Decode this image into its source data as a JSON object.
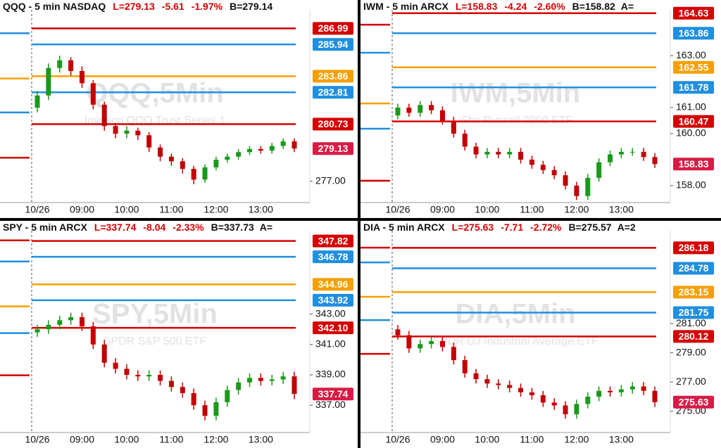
{
  "chart_data": [
    {
      "type": "candlestick",
      "title": "QQQ - 5 min  NASDAQ",
      "quote": [
        "L=279.13",
        "-5.61",
        "-1.97%"
      ],
      "bid": "B=279.14",
      "watermark": "QQQ,5Min",
      "subtitle": "Invesco QQQ Trust Series 1",
      "up_color": "#1a9a1a",
      "down_color": "#c40000",
      "open": [
        281.8,
        282.6,
        284.4,
        284.9,
        284.2,
        283.4,
        282.0,
        280.6,
        280.1,
        280.3,
        280.0,
        279.2,
        278.6,
        278.3,
        277.8,
        277.1,
        277.9,
        278.4,
        278.6,
        278.9,
        279.1,
        279.0,
        279.3,
        279.6
      ],
      "high": [
        282.9,
        284.7,
        285.2,
        285.1,
        284.5,
        283.6,
        282.2,
        280.8,
        280.6,
        280.5,
        280.2,
        279.4,
        278.8,
        278.5,
        278.0,
        278.1,
        278.6,
        278.8,
        279.1,
        279.3,
        279.3,
        279.5,
        279.8,
        279.8
      ],
      "low": [
        281.5,
        282.3,
        284.1,
        283.9,
        283.1,
        281.7,
        280.3,
        279.8,
        279.8,
        279.7,
        278.9,
        278.3,
        278.0,
        277.5,
        276.8,
        276.9,
        277.7,
        278.2,
        278.4,
        278.7,
        278.8,
        278.8,
        279.1,
        278.9
      ],
      "close": [
        282.6,
        284.4,
        284.9,
        284.2,
        283.4,
        282.0,
        280.6,
        280.1,
        280.3,
        280.0,
        279.2,
        278.6,
        278.3,
        277.8,
        277.1,
        277.9,
        278.4,
        278.6,
        278.9,
        279.1,
        279.0,
        279.3,
        279.6,
        279.13
      ],
      "levels": [
        {
          "value": 286.99,
          "label": "286.99",
          "color": "#d40000"
        },
        {
          "value": 285.94,
          "label": "285.94",
          "color": "#1f8fe0"
        },
        {
          "value": 283.86,
          "label": "283.86",
          "color": "#f5a000"
        },
        {
          "value": 282.81,
          "label": "282.81",
          "color": "#1f8fe0"
        },
        {
          "value": 280.73,
          "label": "280.73",
          "color": "#d40000"
        }
      ],
      "prior_levels": [
        {
          "value": 286.67,
          "color": "#1f8fe0"
        },
        {
          "value": 283.71,
          "color": "#f5a000"
        },
        {
          "value": 281.49,
          "color": "#1f8fe0"
        },
        {
          "value": 278.53,
          "color": "#d40000"
        }
      ],
      "last": {
        "value": 279.13,
        "label": "279.13",
        "color": "#d81b45"
      },
      "ylim": [
        275.6,
        288.2
      ],
      "yticks": [
        {
          "value": 277,
          "label": "277.00"
        }
      ],
      "xticks": [
        {
          "value": 0,
          "label": "10/26"
        },
        {
          "value": 4,
          "label": "09:00"
        },
        {
          "value": 8,
          "label": "10:00"
        },
        {
          "value": 12,
          "label": "11:00"
        },
        {
          "value": 16,
          "label": "12:00"
        },
        {
          "value": 20,
          "label": "13:00"
        }
      ]
    },
    {
      "type": "candlestick",
      "title": "IWM - 5 min  ARCX",
      "quote": [
        "L=158.83",
        "-4.24",
        "-2.60%"
      ],
      "bid": "B=158.82",
      "ask": "A=",
      "watermark": "IWM,5Min",
      "subtitle": "iShs Russell 2000 ETF",
      "up_color": "#1a9a1a",
      "down_color": "#c40000",
      "open": [
        160.7,
        161.0,
        160.8,
        161.1,
        160.9,
        160.5,
        160.0,
        159.5,
        159.2,
        159.3,
        159.2,
        159.3,
        159.0,
        158.8,
        158.6,
        158.4,
        158.0,
        157.6,
        158.3,
        158.9,
        159.2,
        159.3,
        159.3,
        159.1
      ],
      "high": [
        161.15,
        161.15,
        161.25,
        161.25,
        161.05,
        160.65,
        160.15,
        159.65,
        159.45,
        159.45,
        159.45,
        159.45,
        159.15,
        158.95,
        158.75,
        158.55,
        158.15,
        158.45,
        159.05,
        159.35,
        159.45,
        159.45,
        159.45,
        159.25
      ],
      "low": [
        160.55,
        160.65,
        160.65,
        160.75,
        160.35,
        159.85,
        159.35,
        159.05,
        159.05,
        159.05,
        159.05,
        158.85,
        158.65,
        158.45,
        158.25,
        157.85,
        157.45,
        157.45,
        158.15,
        158.75,
        159.05,
        159.15,
        158.95,
        158.68
      ],
      "close": [
        161.0,
        160.8,
        161.1,
        160.9,
        160.5,
        160.0,
        159.5,
        159.2,
        159.3,
        159.2,
        159.3,
        159.0,
        158.8,
        158.6,
        158.4,
        158.0,
        157.6,
        158.3,
        158.9,
        159.2,
        159.3,
        159.3,
        159.1,
        158.83
      ],
      "levels": [
        {
          "value": 164.63,
          "label": "164.63",
          "color": "#d40000"
        },
        {
          "value": 163.86,
          "label": "163.86",
          "color": "#1f8fe0"
        },
        {
          "value": 162.55,
          "label": "162.55",
          "color": "#f5a000"
        },
        {
          "value": 161.78,
          "label": "161.78",
          "color": "#1f8fe0"
        },
        {
          "value": 160.47,
          "label": "160.47",
          "color": "#d40000"
        }
      ],
      "prior_levels": [
        {
          "value": 164.19,
          "color": "#d40000"
        },
        {
          "value": 163.11,
          "color": "#1f8fe0"
        },
        {
          "value": 161.16,
          "color": "#f5a000"
        },
        {
          "value": 160.19,
          "color": "#1f8fe0"
        },
        {
          "value": 158.19,
          "color": "#d40000"
        }
      ],
      "last": {
        "value": 158.83,
        "label": "158.83",
        "color": "#d81b45"
      },
      "ylim": [
        157.35,
        164.76
      ],
      "yticks": [
        {
          "value": 163,
          "label": "163.00"
        },
        {
          "value": 161,
          "label": "161.00"
        },
        {
          "value": 160,
          "label": "160.00"
        },
        {
          "value": 158,
          "label": "158.00"
        }
      ],
      "xticks": [
        {
          "value": 0,
          "label": "10/26"
        },
        {
          "value": 4,
          "label": "09:00"
        },
        {
          "value": 8,
          "label": "10:00"
        },
        {
          "value": 12,
          "label": "11:00"
        },
        {
          "value": 16,
          "label": "12:00"
        },
        {
          "value": 20,
          "label": "13:00"
        }
      ]
    },
    {
      "type": "candlestick",
      "title": "SPY - 5 min  ARCX",
      "quote": [
        "L=337.74",
        "-8.04",
        "-2.33%"
      ],
      "bid": "B=337.73",
      "ask": "A=",
      "watermark": "SPY,5Min",
      "subtitle": "SPDR S&P 500 ETF",
      "up_color": "#1a9a1a",
      "down_color": "#c40000",
      "open": [
        341.8,
        342.0,
        342.3,
        342.6,
        342.8,
        342.2,
        341.0,
        339.8,
        339.4,
        339.0,
        338.9,
        339.0,
        338.6,
        338.2,
        337.8,
        337.0,
        336.3,
        337.2,
        338.0,
        338.5,
        338.8,
        338.6,
        338.7,
        338.9
      ],
      "high": [
        342.3,
        342.6,
        342.9,
        343.1,
        343.1,
        342.5,
        341.3,
        340.1,
        339.7,
        339.3,
        339.3,
        339.3,
        338.9,
        338.5,
        338.1,
        337.3,
        337.5,
        338.3,
        338.8,
        339.1,
        339.1,
        339.0,
        339.2,
        339.2
      ],
      "low": [
        341.5,
        341.7,
        342.0,
        342.3,
        341.9,
        340.7,
        339.5,
        339.1,
        338.7,
        338.6,
        338.6,
        338.3,
        337.9,
        337.5,
        336.7,
        336.0,
        336.0,
        336.9,
        337.7,
        338.2,
        338.3,
        338.3,
        338.4,
        337.4
      ],
      "close": [
        342.0,
        342.3,
        342.6,
        342.8,
        342.2,
        341.0,
        339.8,
        339.4,
        339.0,
        338.9,
        339.0,
        338.6,
        338.2,
        337.8,
        337.0,
        336.3,
        337.2,
        338.0,
        338.5,
        338.8,
        338.6,
        338.7,
        338.9,
        337.74
      ],
      "levels": [
        {
          "value": 347.82,
          "label": "347.82",
          "color": "#d40000"
        },
        {
          "value": 346.78,
          "label": "346.78",
          "color": "#1f8fe0"
        },
        {
          "value": 344.96,
          "label": "344.96",
          "color": "#f5a000"
        },
        {
          "value": 343.92,
          "label": "343.92",
          "color": "#1f8fe0"
        },
        {
          "value": 342.1,
          "label": "342.10",
          "color": "#d40000"
        }
      ],
      "prior_levels": [
        {
          "value": 347.86,
          "color": "#d40000"
        },
        {
          "value": 346.47,
          "color": "#1f8fe0"
        },
        {
          "value": 343.51,
          "color": "#f5a000"
        },
        {
          "value": 341.75,
          "color": "#1f8fe0"
        },
        {
          "value": 338.97,
          "color": "#d40000"
        }
      ],
      "last": {
        "value": 337.74,
        "label": "337.74",
        "color": "#d81b45"
      },
      "ylim": [
        335.2,
        348.5
      ],
      "yticks": [
        {
          "value": 343,
          "label": "343.00"
        },
        {
          "value": 341,
          "label": "341.00"
        },
        {
          "value": 339,
          "label": "339.00"
        },
        {
          "value": 337,
          "label": "337.00"
        }
      ],
      "xticks": [
        {
          "value": 0,
          "label": "10/26"
        },
        {
          "value": 4,
          "label": "09:00"
        },
        {
          "value": 8,
          "label": "10:00"
        },
        {
          "value": 12,
          "label": "11:00"
        },
        {
          "value": 16,
          "label": "12:00"
        },
        {
          "value": 20,
          "label": "13:00"
        }
      ]
    },
    {
      "type": "candlestick",
      "title": "DIA - 5 min  ARCX",
      "quote": [
        "L=275.63",
        "-7.71",
        "-2.72%"
      ],
      "bid": "B=275.57",
      "ask": "A=2",
      "watermark": "DIA,5Min",
      "subtitle": "SPDR DJ Industrial Average ETF",
      "up_color": "#1a9a1a",
      "down_color": "#c40000",
      "open": [
        280.6,
        280.2,
        279.3,
        279.6,
        279.8,
        279.4,
        278.5,
        277.6,
        277.2,
        276.9,
        276.8,
        276.6,
        276.3,
        276.1,
        275.6,
        275.4,
        274.8,
        275.5,
        276.0,
        276.4,
        276.3,
        276.5,
        276.7,
        276.4
      ],
      "high": [
        280.9,
        280.5,
        279.9,
        280.1,
        280.1,
        279.7,
        278.8,
        277.9,
        277.5,
        277.2,
        277.1,
        276.9,
        276.6,
        276.4,
        275.9,
        275.7,
        275.8,
        276.3,
        276.7,
        276.7,
        276.8,
        277.0,
        277.0,
        276.7
      ],
      "low": [
        279.9,
        279.0,
        279.0,
        279.3,
        279.1,
        278.2,
        277.3,
        276.9,
        276.6,
        276.5,
        276.3,
        276.0,
        275.8,
        275.3,
        275.1,
        274.5,
        274.5,
        275.2,
        275.7,
        276.0,
        276.0,
        276.2,
        276.1,
        275.3
      ],
      "close": [
        280.2,
        279.3,
        279.6,
        279.8,
        279.4,
        278.5,
        277.6,
        277.2,
        276.9,
        276.8,
        276.6,
        276.3,
        276.1,
        275.6,
        275.4,
        274.8,
        275.5,
        276.0,
        276.4,
        276.3,
        276.5,
        276.7,
        276.4,
        275.63
      ],
      "levels": [
        {
          "value": 286.18,
          "label": "286.18",
          "color": "#d40000"
        },
        {
          "value": 284.78,
          "label": "284.78",
          "color": "#1f8fe0"
        },
        {
          "value": 283.15,
          "label": "283.15",
          "color": "#f5a000"
        },
        {
          "value": 281.75,
          "label": "281.75",
          "color": "#1f8fe0"
        },
        {
          "value": 280.12,
          "label": "280.12",
          "color": "#d40000"
        }
      ],
      "prior_levels": [
        {
          "value": 286.19,
          "color": "#d40000"
        },
        {
          "value": 285.18,
          "color": "#1f8fe0"
        },
        {
          "value": 282.83,
          "color": "#f5a000"
        },
        {
          "value": 281.24,
          "color": "#1f8fe0"
        },
        {
          "value": 278.93,
          "color": "#d40000"
        }
      ],
      "last": {
        "value": 275.63,
        "label": "275.63",
        "color": "#d81b45"
      },
      "ylim": [
        273.55,
        287.35
      ],
      "yticks": [
        {
          "value": 281,
          "label": "281.00"
        },
        {
          "value": 279,
          "label": "279.00"
        },
        {
          "value": 277,
          "label": "277.00"
        },
        {
          "value": 275,
          "label": "275.00"
        }
      ],
      "xticks": [
        {
          "value": 0,
          "label": "10/26"
        },
        {
          "value": 4,
          "label": "09:00"
        },
        {
          "value": 8,
          "label": "10:00"
        },
        {
          "value": 12,
          "label": "11:00"
        },
        {
          "value": 16,
          "label": "12:00"
        },
        {
          "value": 20,
          "label": "13:00"
        }
      ]
    }
  ]
}
